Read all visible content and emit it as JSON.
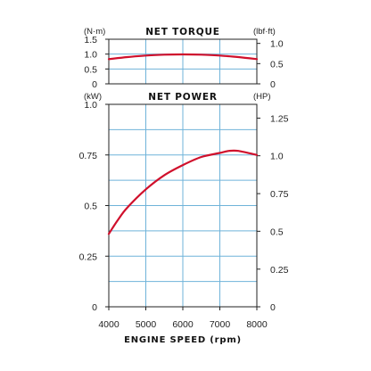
{
  "chart_data": [
    {
      "type": "line",
      "title": "NET TORQUE",
      "left_unit": "(N·m)",
      "right_unit": "(lbf·ft)",
      "x": [
        4000,
        4500,
        5000,
        5500,
        6000,
        6500,
        7000,
        7500,
        8000
      ],
      "xlim": [
        4000,
        8000
      ],
      "ylim": [
        0,
        1.5
      ],
      "left_ticks": [
        "0",
        "0.5",
        "1.0",
        "1.5"
      ],
      "left_tick_values": [
        0,
        0.5,
        1.0,
        1.5
      ],
      "right_ticks": [
        "0",
        "0.5",
        "1.0"
      ],
      "right_tick_values": [
        0,
        0.68,
        1.36
      ],
      "series": [
        {
          "values": [
            0.83,
            0.9,
            0.95,
            0.98,
            0.99,
            0.98,
            0.95,
            0.9,
            0.83
          ]
        }
      ],
      "grid": true,
      "color": "#d0102c"
    },
    {
      "type": "line",
      "title": "NET POWER",
      "left_unit": "(kW)",
      "right_unit": "(HP)",
      "x": [
        4000,
        4250,
        4500,
        5000,
        5500,
        6000,
        6500,
        7000,
        7250,
        7500,
        8000
      ],
      "xlim": [
        4000,
        8000
      ],
      "ylim": [
        0,
        1.0
      ],
      "left_ticks": [
        "0",
        "0.25",
        "0.5",
        "0.75",
        "1.0"
      ],
      "left_tick_values": [
        0,
        0.25,
        0.5,
        0.75,
        1.0
      ],
      "right_ticks": [
        "0",
        "0.25",
        "0.5",
        "0.75",
        "1.0",
        "1.25"
      ],
      "right_tick_values": [
        0,
        0.186,
        0.373,
        0.559,
        0.746,
        0.932
      ],
      "series": [
        {
          "values": [
            0.36,
            0.43,
            0.49,
            0.58,
            0.65,
            0.7,
            0.74,
            0.76,
            0.77,
            0.77,
            0.75
          ]
        }
      ],
      "x_ticks": [
        "4000",
        "5000",
        "6000",
        "7000",
        "8000"
      ],
      "x_tick_values": [
        4000,
        5000,
        6000,
        7000,
        8000
      ],
      "xlabel": "ENGINE SPEED (rpm)",
      "grid": true,
      "color": "#d0102c"
    }
  ]
}
